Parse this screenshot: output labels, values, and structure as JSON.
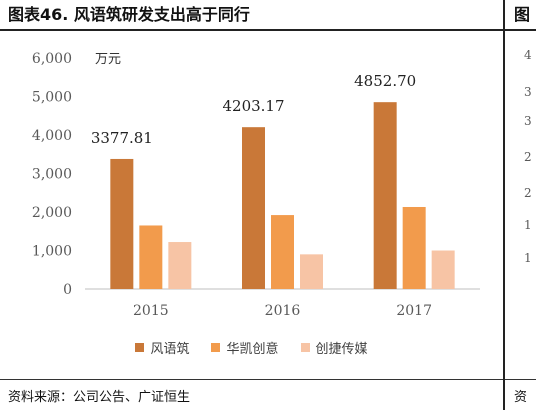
{
  "title": "图表46. 风语筑研发支出高于同行",
  "source": "资料来源：公司公告、广证恒生",
  "right_panel": {
    "title": "图",
    "source": "资",
    "tick_fragments": [
      "4",
      "3",
      "3",
      "2",
      "2",
      "1",
      "1"
    ]
  },
  "chart_data": {
    "type": "bar",
    "unit": "万元",
    "categories": [
      "2015",
      "2016",
      "2017"
    ],
    "series": [
      {
        "name": "风语筑",
        "color": "#C97838",
        "values": [
          3377.81,
          4203.17,
          4852.7
        ]
      },
      {
        "name": "华凯创意",
        "color": "#F29B4C",
        "values": [
          1650,
          1920,
          2130
        ]
      },
      {
        "name": "创捷传媒",
        "color": "#F7C4A5",
        "values": [
          1220,
          900,
          1000
        ]
      }
    ],
    "data_labels": [
      "3377.81",
      "4203.17",
      "4852.70"
    ],
    "yticks": [
      "0",
      "1,000",
      "2,000",
      "3,000",
      "4,000",
      "5,000",
      "6,000"
    ],
    "ylim": [
      0,
      6000
    ],
    "grid": false,
    "legend_position": "bottom"
  }
}
